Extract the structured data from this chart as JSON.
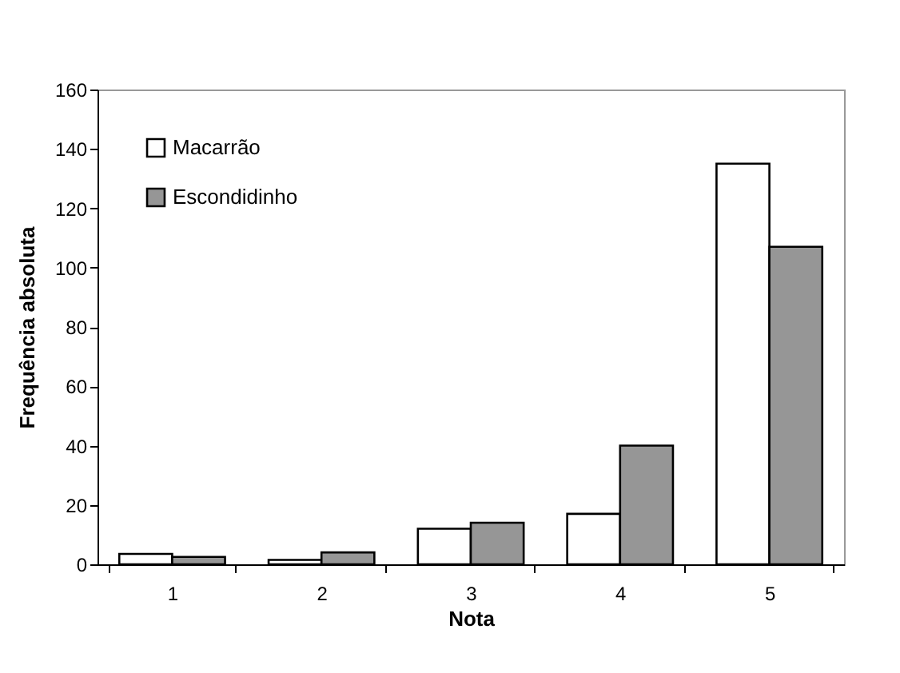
{
  "chart_data": {
    "type": "bar",
    "xlabel": "Nota",
    "ylabel": "Frequência absoluta",
    "categories": [
      "1",
      "2",
      "3",
      "4",
      "5"
    ],
    "series": [
      {
        "name": "Macarrão",
        "color": "#ffffff",
        "values": [
          3.5,
          1.5,
          12,
          17,
          135
        ]
      },
      {
        "name": "Escondidinho",
        "color": "#969696",
        "values": [
          2.5,
          4,
          14,
          40,
          107
        ]
      }
    ],
    "ylim": [
      0,
      160
    ],
    "yticks": [
      0,
      20,
      40,
      60,
      80,
      100,
      120,
      140,
      160
    ],
    "grid": false,
    "legend": "top left"
  }
}
